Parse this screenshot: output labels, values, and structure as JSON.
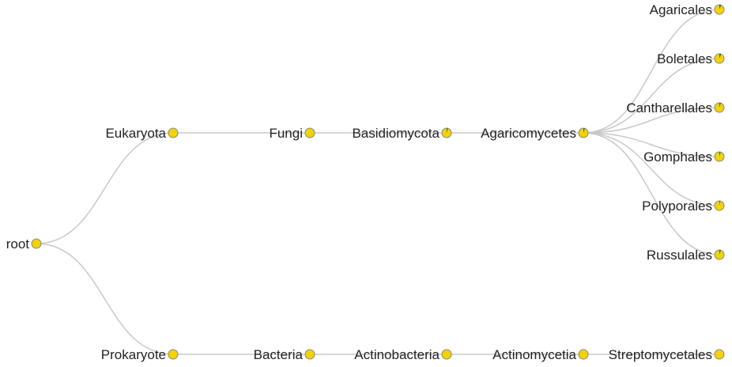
{
  "colors": {
    "link": "#c8c8c8",
    "node_fill": "#f2d200",
    "node_stroke": "#8a8a8a",
    "slice": "#2f6b2a",
    "text": "#222222"
  },
  "tree": {
    "id": "root",
    "label": "root",
    "children": [
      {
        "id": "eukaryota",
        "label": "Eukaryota",
        "children": [
          {
            "id": "fungi",
            "label": "Fungi",
            "children": [
              {
                "id": "basidiomycota",
                "label": "Basidiomycota",
                "slice": 0.04,
                "children": [
                  {
                    "id": "agaricomycetes",
                    "label": "Agaricomycetes",
                    "slice": 0.05,
                    "children": [
                      {
                        "id": "agaricales",
                        "label": "Agaricales",
                        "slice": 0.06
                      },
                      {
                        "id": "boletales",
                        "label": "Boletales",
                        "slice": 0.06
                      },
                      {
                        "id": "cantharellales",
                        "label": "Cantharellales",
                        "slice": 0.05
                      },
                      {
                        "id": "gomphales",
                        "label": "Gomphales",
                        "slice": 0.04
                      },
                      {
                        "id": "polyporales",
                        "label": "Polyporales",
                        "slice": 0.03
                      },
                      {
                        "id": "russulales",
                        "label": "Russulales",
                        "slice": 0.05
                      }
                    ]
                  }
                ]
              }
            ]
          }
        ]
      },
      {
        "id": "prokaryote",
        "label": "Prokaryote",
        "children": [
          {
            "id": "bacteria",
            "label": "Bacteria",
            "children": [
              {
                "id": "actinobacteria",
                "label": "Actinobacteria",
                "children": [
                  {
                    "id": "actinomycetia",
                    "label": "Actinomycetia",
                    "children": [
                      {
                        "id": "streptomycetales",
                        "label": "Streptomycetales"
                      }
                    ]
                  }
                ]
              }
            ]
          }
        ]
      }
    ]
  }
}
